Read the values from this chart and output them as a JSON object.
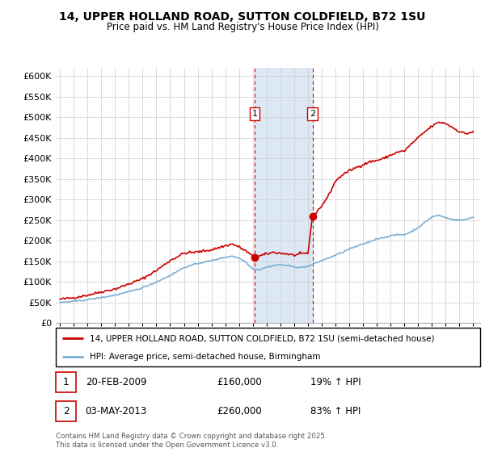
{
  "title": "14, UPPER HOLLAND ROAD, SUTTON COLDFIELD, B72 1SU",
  "subtitle": "Price paid vs. HM Land Registry's House Price Index (HPI)",
  "legend_line1": "14, UPPER HOLLAND ROAD, SUTTON COLDFIELD, B72 1SU (semi-detached house)",
  "legend_line2": "HPI: Average price, semi-detached house, Birmingham",
  "footnote": "Contains HM Land Registry data © Crown copyright and database right 2025.\nThis data is licensed under the Open Government Licence v3.0.",
  "sale1_date": "20-FEB-2009",
  "sale1_price": "£160,000",
  "sale1_hpi": "19% ↑ HPI",
  "sale2_date": "03-MAY-2013",
  "sale2_price": "£260,000",
  "sale2_hpi": "83% ↑ HPI",
  "red_color": "#cc0000",
  "blue_color": "#7bafd4",
  "highlight_color": "#dce9f5",
  "ylim": [
    0,
    620000
  ],
  "yticks": [
    0,
    50000,
    100000,
    150000,
    200000,
    250000,
    300000,
    350000,
    400000,
    450000,
    500000,
    550000,
    600000
  ],
  "sale1_x": 2009.13,
  "sale1_y": 160000,
  "sale2_x": 2013.34,
  "sale2_y": 260000,
  "highlight_x1": 2009.13,
  "highlight_x2": 2013.34,
  "xmin": 1995.0,
  "xmax": 2025.5
}
